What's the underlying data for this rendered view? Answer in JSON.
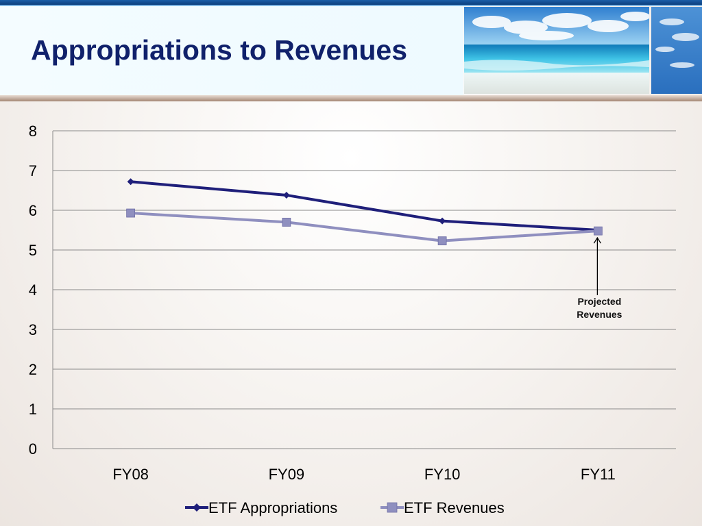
{
  "slide": {
    "title": "Appropriations to Revenues"
  },
  "colors": {
    "title": "#10216b",
    "appropriations": "#1f1f7a",
    "revenues": "#8f8fbf"
  },
  "chart_data": {
    "type": "line",
    "categories": [
      "FY08",
      "FY09",
      "FY10",
      "FY11"
    ],
    "series": [
      {
        "name": "ETF Appropriations",
        "values": [
          6.72,
          6.38,
          5.73,
          5.5
        ],
        "marker": "diamond",
        "color": "#1f1f7a"
      },
      {
        "name": "ETF Revenues",
        "values": [
          5.93,
          5.7,
          5.23,
          5.48
        ],
        "marker": "square",
        "color": "#8f8fbf"
      }
    ],
    "ylim": [
      0,
      8
    ],
    "yticks": [
      0,
      1,
      2,
      3,
      4,
      5,
      6,
      7,
      8
    ],
    "grid": true,
    "legend": "bottom",
    "annotation": {
      "lines": [
        "Projected",
        "Revenues"
      ],
      "category": "FY11",
      "series": "ETF Revenues"
    }
  }
}
